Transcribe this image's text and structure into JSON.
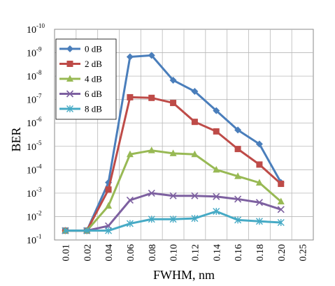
{
  "chart_data": {
    "type": "line",
    "xlabel": "FWHM, nm",
    "ylabel": "BER",
    "x_ticks": [
      "0.01",
      "0.02",
      "0.04",
      "0.06",
      "0.08",
      "0.10",
      "0.12",
      "0.14",
      "0.16",
      "0.18",
      "0.20",
      "0.25"
    ],
    "y_ticks": [
      {
        "base": "10",
        "exp": "-10",
        "value": 1e-10
      },
      {
        "base": "10",
        "exp": "-9",
        "value": 1e-09
      },
      {
        "base": "10",
        "exp": "-8",
        "value": 1e-08
      },
      {
        "base": "10",
        "exp": "-7",
        "value": 1e-07
      },
      {
        "base": "10",
        "exp": "-6",
        "value": 1e-06
      },
      {
        "base": "10",
        "exp": "-5",
        "value": 1e-05
      },
      {
        "base": "10",
        "exp": "-4",
        "value": 0.0001
      },
      {
        "base": "10",
        "exp": "-3",
        "value": 0.001
      },
      {
        "base": "10",
        "exp": "-2",
        "value": 0.01
      },
      {
        "base": "10",
        "exp": "-1",
        "value": 0.1
      }
    ],
    "y_scale": "log",
    "y_inverted": true,
    "grid": true,
    "legend_position": "top-left",
    "series": [
      {
        "name": "0 dB",
        "color": "#4A7EBB",
        "marker": "diamond",
        "x": [
          "0.01",
          "0.02",
          "0.04",
          "0.06",
          "0.08",
          "0.10",
          "0.12",
          "0.14",
          "0.16",
          "0.18",
          "0.20"
        ],
        "y": [
          0.04,
          0.04,
          0.00035,
          1.5e-09,
          1.3e-09,
          1.5e-08,
          4.5e-08,
          3e-07,
          2e-06,
          8e-06,
          0.00035
        ]
      },
      {
        "name": "2 dB",
        "color": "#BE4B48",
        "marker": "square",
        "x": [
          "0.01",
          "0.02",
          "0.04",
          "0.06",
          "0.08",
          "0.10",
          "0.12",
          "0.14",
          "0.16",
          "0.18",
          "0.20"
        ],
        "y": [
          0.04,
          0.04,
          0.0007,
          8e-08,
          8.5e-08,
          1.4e-07,
          9e-07,
          2.3e-06,
          1.3e-05,
          6e-05,
          0.0004
        ]
      },
      {
        "name": "4 dB",
        "color": "#98B954",
        "marker": "triangle",
        "x": [
          "0.01",
          "0.02",
          "0.04",
          "0.06",
          "0.08",
          "0.10",
          "0.12",
          "0.14",
          "0.16",
          "0.18",
          "0.20"
        ],
        "y": [
          0.04,
          0.04,
          0.0035,
          2.2e-05,
          1.5e-05,
          2e-05,
          2.2e-05,
          0.0001,
          0.00019,
          0.00036,
          0.0023
        ]
      },
      {
        "name": "6 dB",
        "color": "#7D60A0",
        "marker": "x",
        "x": [
          "0.01",
          "0.02",
          "0.04",
          "0.06",
          "0.08",
          "0.10",
          "0.12",
          "0.14",
          "0.16",
          "0.18",
          "0.20"
        ],
        "y": [
          0.04,
          0.04,
          0.025,
          0.002,
          0.001,
          0.0013,
          0.0013,
          0.0014,
          0.0018,
          0.0025,
          0.005
        ]
      },
      {
        "name": "8 dB",
        "color": "#46AAC5",
        "marker": "star",
        "x": [
          "0.01",
          "0.02",
          "0.04",
          "0.06",
          "0.08",
          "0.10",
          "0.12",
          "0.14",
          "0.16",
          "0.18",
          "0.20"
        ],
        "y": [
          0.04,
          0.04,
          0.04,
          0.02,
          0.013,
          0.013,
          0.012,
          0.006,
          0.014,
          0.016,
          0.018
        ]
      }
    ]
  }
}
